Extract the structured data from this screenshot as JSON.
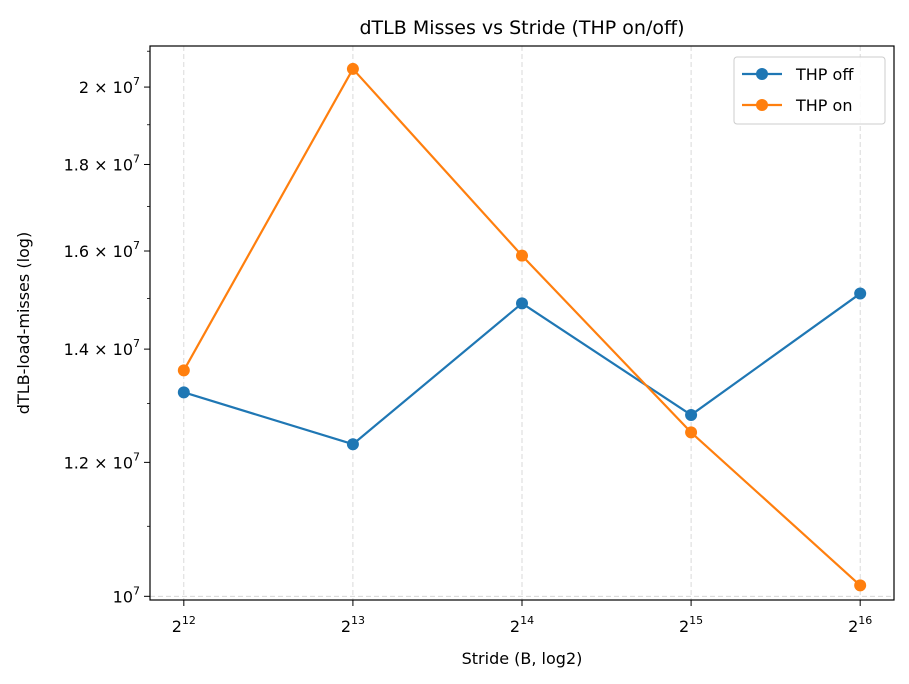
{
  "chart_data": {
    "type": "line",
    "title": "dTLB Misses vs Stride (THP on/off)",
    "xlabel": "Stride (B, log2)",
    "ylabel": "dTLB-load-misses (log)",
    "x_scale": "log2",
    "y_scale": "log",
    "x": [
      4096,
      8192,
      16384,
      32768,
      65536
    ],
    "x_tick_labels": [
      {
        "base": "2",
        "exp": "12"
      },
      {
        "base": "2",
        "exp": "13"
      },
      {
        "base": "2",
        "exp": "14"
      },
      {
        "base": "2",
        "exp": "15"
      },
      {
        "base": "2",
        "exp": "16"
      }
    ],
    "y_ticks": [
      10000000,
      12000000,
      14000000,
      16000000,
      18000000,
      20000000
    ],
    "y_tick_labels": [
      {
        "mantissa": "",
        "exp": "7"
      },
      {
        "mantissa": "1.2",
        "exp": "7"
      },
      {
        "mantissa": "1.4",
        "exp": "7"
      },
      {
        "mantissa": "1.6",
        "exp": "7"
      },
      {
        "mantissa": "1.8",
        "exp": "7"
      },
      {
        "mantissa": "2",
        "exp": "7"
      }
    ],
    "ylim": [
      9950000,
      21150000
    ],
    "grid": "x-only dashed",
    "legend_position": "upper right",
    "series": [
      {
        "name": "THP off",
        "color": "#1f77b4",
        "values": [
          13200000,
          12300000,
          14900000,
          12800000,
          15100000
        ]
      },
      {
        "name": "THP on",
        "color": "#ff7f0e",
        "values": [
          13600000,
          20500000,
          15900000,
          12500000,
          10150000
        ]
      }
    ]
  }
}
